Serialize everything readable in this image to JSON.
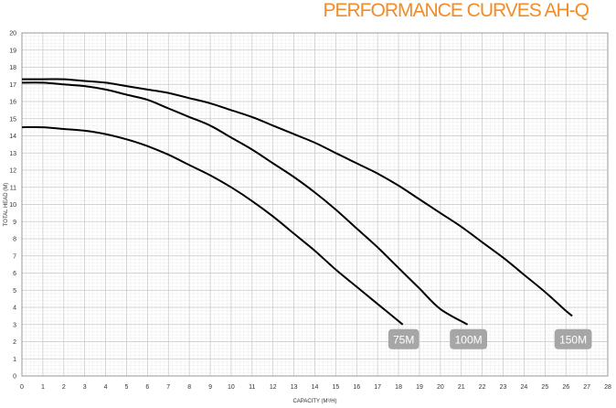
{
  "chart_data": {
    "type": "line",
    "title": "PERFORMANCE CURVES AH-Q",
    "xlabel": "CAPACITY (M³/H)",
    "ylabel": "TOTAL HEAD (M)",
    "xlim": [
      0,
      28
    ],
    "ylim": [
      0,
      20
    ],
    "x_ticks": [
      0,
      1,
      2,
      3,
      4,
      5,
      6,
      7,
      8,
      9,
      10,
      11,
      12,
      13,
      14,
      15,
      16,
      17,
      18,
      19,
      20,
      21,
      22,
      23,
      24,
      25,
      26,
      27,
      28
    ],
    "y_ticks": [
      0,
      1,
      2,
      3,
      4,
      5,
      6,
      7,
      8,
      9,
      10,
      11,
      12,
      13,
      14,
      15,
      16,
      17,
      18,
      19,
      20
    ],
    "grid": true,
    "series": [
      {
        "name": "75M",
        "color": "#000000",
        "points": [
          [
            0,
            14.5
          ],
          [
            1,
            14.5
          ],
          [
            2,
            14.4
          ],
          [
            3,
            14.3
          ],
          [
            4,
            14.1
          ],
          [
            5,
            13.8
          ],
          [
            6,
            13.4
          ],
          [
            7,
            12.9
          ],
          [
            8,
            12.3
          ],
          [
            9,
            11.7
          ],
          [
            10,
            11.0
          ],
          [
            11,
            10.2
          ],
          [
            12,
            9.3
          ],
          [
            13,
            8.3
          ],
          [
            14,
            7.3
          ],
          [
            15,
            6.2
          ],
          [
            16,
            5.2
          ],
          [
            17,
            4.2
          ],
          [
            18.2,
            3.0
          ]
        ]
      },
      {
        "name": "100M",
        "color": "#000000",
        "points": [
          [
            0,
            17.1
          ],
          [
            1,
            17.1
          ],
          [
            2,
            17.0
          ],
          [
            3,
            16.9
          ],
          [
            4,
            16.7
          ],
          [
            5,
            16.4
          ],
          [
            6,
            16.1
          ],
          [
            7,
            15.6
          ],
          [
            8,
            15.1
          ],
          [
            9,
            14.6
          ],
          [
            10,
            13.9
          ],
          [
            11,
            13.2
          ],
          [
            12,
            12.4
          ],
          [
            13,
            11.6
          ],
          [
            14,
            10.7
          ],
          [
            15,
            9.7
          ],
          [
            16,
            8.6
          ],
          [
            17,
            7.5
          ],
          [
            18,
            6.3
          ],
          [
            19,
            5.1
          ],
          [
            20,
            3.9
          ],
          [
            21.3,
            3.0
          ]
        ]
      },
      {
        "name": "150M",
        "color": "#000000",
        "points": [
          [
            0,
            17.3
          ],
          [
            1,
            17.3
          ],
          [
            2,
            17.3
          ],
          [
            3,
            17.2
          ],
          [
            4,
            17.1
          ],
          [
            5,
            16.9
          ],
          [
            6,
            16.7
          ],
          [
            7,
            16.5
          ],
          [
            8,
            16.2
          ],
          [
            9,
            15.9
          ],
          [
            10,
            15.5
          ],
          [
            11,
            15.1
          ],
          [
            12,
            14.6
          ],
          [
            13,
            14.1
          ],
          [
            14,
            13.6
          ],
          [
            15,
            13.0
          ],
          [
            16,
            12.4
          ],
          [
            17,
            11.8
          ],
          [
            18,
            11.1
          ],
          [
            19,
            10.3
          ],
          [
            20,
            9.5
          ],
          [
            21,
            8.7
          ],
          [
            22,
            7.8
          ],
          [
            23,
            6.9
          ],
          [
            24,
            5.9
          ],
          [
            25,
            4.9
          ],
          [
            26,
            3.8
          ],
          [
            26.3,
            3.5
          ]
        ]
      }
    ],
    "annotations": [
      {
        "text": "75M",
        "x": 18.2,
        "y": 3.0
      },
      {
        "text": "100M",
        "x": 21.3,
        "y": 3.0
      },
      {
        "text": "150M",
        "x": 26.3,
        "y": 3.0
      }
    ]
  }
}
